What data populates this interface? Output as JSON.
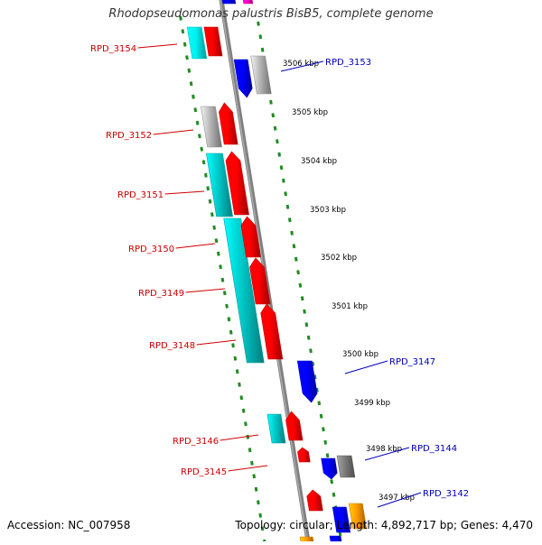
{
  "title": "Rhodopseudomonas palustris BisB5, complete genome",
  "footer": {
    "accession": "Accession: NC_007958",
    "summary": "Topology: circular; Length: 4,892,717 bp; Genes: 4,470"
  },
  "colors": {
    "red": "#ff0000",
    "cyan": "#00c8c8",
    "cyan_light": "#00f0f0",
    "blue": "#0000ff",
    "gray": "#b4b4b4",
    "dark_gray": "#7a7a7a",
    "orange": "#ff9900",
    "magenta": "#ff00cc",
    "left_label": "#cc0000",
    "right_label": "#0000bb",
    "tick": "#228b22",
    "backbone": "#808080"
  },
  "kbp_labels": [
    "3506 kbp",
    "3505 kbp",
    "3504 kbp",
    "3503 kbp",
    "3502 kbp",
    "3501 kbp",
    "3500 kbp",
    "3499 kbp",
    "3498 kbp",
    "3497 kbp"
  ],
  "genes_left": [
    "RPD_3154",
    "RPD_3152",
    "RPD_3151",
    "RPD_3150",
    "RPD_3149",
    "RPD_3148",
    "RPD_3146",
    "RPD_3145"
  ],
  "genes_right": [
    "RPD_3153",
    "RPD_3147",
    "RPD_3144",
    "RPD_3142"
  ]
}
